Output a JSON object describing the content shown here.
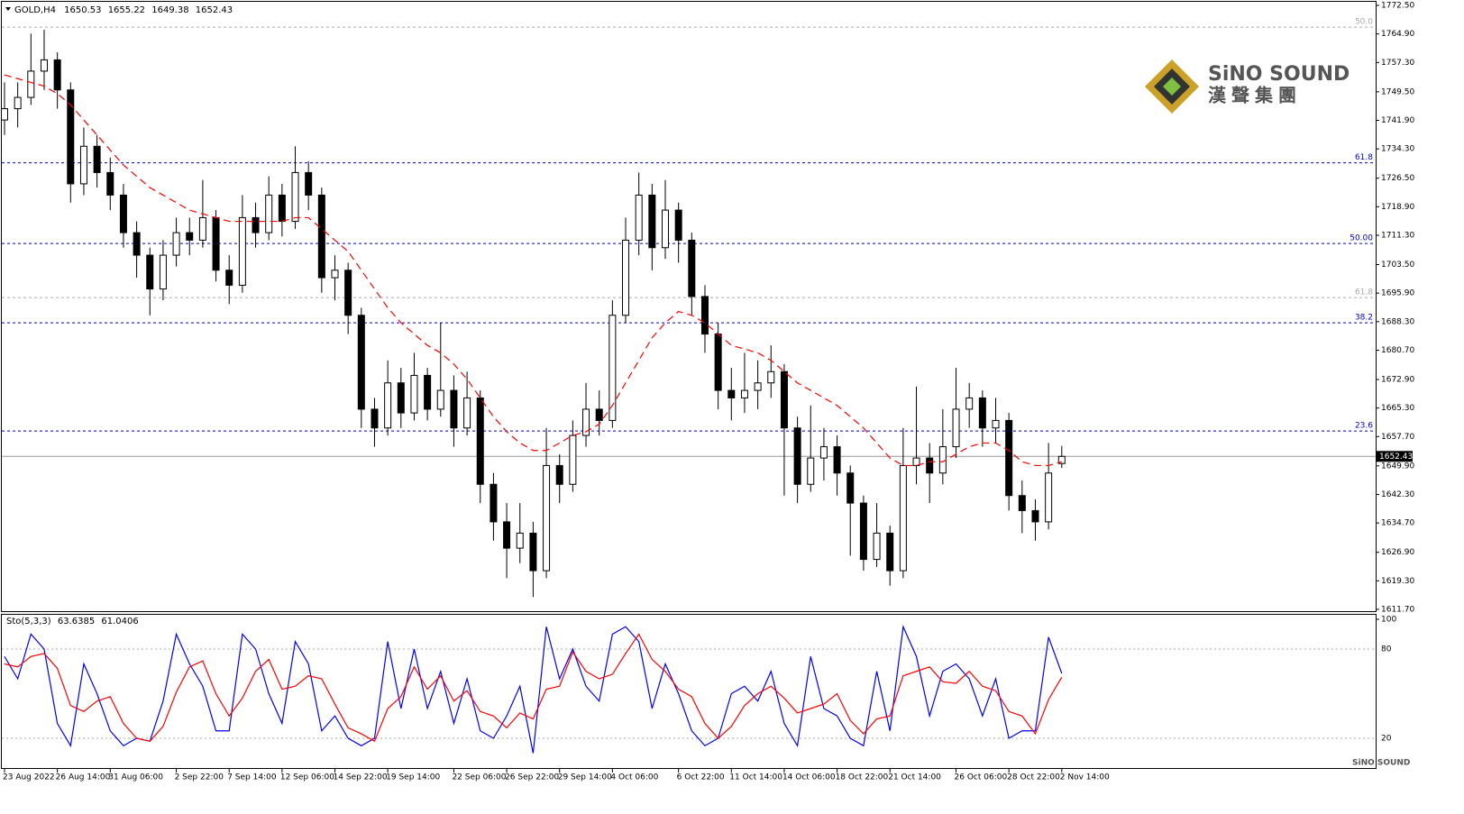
{
  "chart_data": [
    {
      "type": "candlestick",
      "title": "GOLD,H4",
      "categories": [
        "23 Aug 2022",
        null,
        null,
        null,
        "26 Aug 14:00",
        null,
        null,
        null,
        "31 Aug 06:00",
        null,
        null,
        null,
        null,
        "2 Sep 22:00",
        null,
        null,
        null,
        "7 Sep 14:00",
        null,
        null,
        null,
        "12 Sep 06:00",
        null,
        null,
        null,
        "14 Sep 22:00",
        null,
        null,
        null,
        "19 Sep 14:00",
        null,
        null,
        null,
        null,
        "22 Sep 06:00",
        null,
        null,
        null,
        "26 Sep 22:00",
        null,
        null,
        null,
        "29 Sep 14:00",
        null,
        null,
        null,
        "4 Oct 06:00",
        null,
        null,
        null,
        null,
        "6 Oct 22:00",
        null,
        null,
        null,
        "11 Oct 14:00",
        null,
        null,
        null,
        "14 Oct 06:00",
        null,
        null,
        null,
        "18 Oct 22:00",
        null,
        null,
        null,
        "21 Oct 14:00",
        null,
        null,
        null,
        null,
        "26 Oct 06:00",
        null,
        null,
        null,
        "28 Oct 22:00",
        null,
        null,
        null,
        "2 Nov 14:00"
      ],
      "candles": [
        [
          1742,
          1752,
          1738,
          1745
        ],
        [
          1745,
          1752,
          1740,
          1748
        ],
        [
          1748,
          1765,
          1746,
          1755
        ],
        [
          1755,
          1766,
          1750,
          1758
        ],
        [
          1758,
          1760,
          1745,
          1750
        ],
        [
          1750,
          1752,
          1720,
          1725
        ],
        [
          1725,
          1740,
          1722,
          1735
        ],
        [
          1735,
          1738,
          1724,
          1728
        ],
        [
          1728,
          1732,
          1718,
          1722
        ],
        [
          1722,
          1725,
          1708,
          1712
        ],
        [
          1712,
          1715,
          1700,
          1706
        ],
        [
          1706,
          1708,
          1690,
          1697
        ],
        [
          1697,
          1710,
          1694,
          1706
        ],
        [
          1706,
          1716,
          1703,
          1712
        ],
        [
          1712,
          1716,
          1706,
          1710
        ],
        [
          1710,
          1726,
          1708,
          1716
        ],
        [
          1716,
          1718,
          1699,
          1702
        ],
        [
          1702,
          1706,
          1693,
          1698
        ],
        [
          1698,
          1722,
          1696,
          1716
        ],
        [
          1716,
          1720,
          1708,
          1712
        ],
        [
          1712,
          1727,
          1710,
          1722
        ],
        [
          1722,
          1725,
          1711,
          1715
        ],
        [
          1715,
          1735,
          1713,
          1728
        ],
        [
          1728,
          1731,
          1718,
          1722
        ],
        [
          1722,
          1724,
          1696,
          1700
        ],
        [
          1700,
          1706,
          1694,
          1702
        ],
        [
          1702,
          1704,
          1685,
          1690
        ],
        [
          1690,
          1692,
          1660,
          1665
        ],
        [
          1665,
          1668,
          1655,
          1660
        ],
        [
          1660,
          1678,
          1658,
          1672
        ],
        [
          1672,
          1676,
          1660,
          1664
        ],
        [
          1664,
          1680,
          1662,
          1674
        ],
        [
          1674,
          1676,
          1662,
          1665
        ],
        [
          1665,
          1688,
          1663,
          1670
        ],
        [
          1670,
          1674,
          1655,
          1660
        ],
        [
          1660,
          1675,
          1658,
          1668
        ],
        [
          1668,
          1670,
          1640,
          1645
        ],
        [
          1645,
          1648,
          1630,
          1635
        ],
        [
          1635,
          1640,
          1620,
          1628
        ],
        [
          1628,
          1640,
          1624,
          1632
        ],
        [
          1632,
          1635,
          1615,
          1622
        ],
        [
          1622,
          1660,
          1620,
          1650
        ],
        [
          1650,
          1653,
          1640,
          1645
        ],
        [
          1645,
          1662,
          1643,
          1658
        ],
        [
          1658,
          1672,
          1655,
          1665
        ],
        [
          1665,
          1670,
          1658,
          1662
        ],
        [
          1662,
          1694,
          1660,
          1690
        ],
        [
          1690,
          1716,
          1688,
          1710
        ],
        [
          1710,
          1728,
          1706,
          1722
        ],
        [
          1722,
          1725,
          1702,
          1708
        ],
        [
          1708,
          1726,
          1705,
          1718
        ],
        [
          1718,
          1720,
          1704,
          1710
        ],
        [
          1710,
          1712,
          1690,
          1695
        ],
        [
          1695,
          1698,
          1680,
          1685
        ],
        [
          1685,
          1688,
          1665,
          1670
        ],
        [
          1670,
          1676,
          1662,
          1668
        ],
        [
          1668,
          1680,
          1664,
          1670
        ],
        [
          1670,
          1678,
          1665,
          1672
        ],
        [
          1672,
          1682,
          1668,
          1675
        ],
        [
          1675,
          1677,
          1642,
          1660
        ],
        [
          1660,
          1663,
          1640,
          1645
        ],
        [
          1645,
          1666,
          1643,
          1652
        ],
        [
          1652,
          1660,
          1646,
          1655
        ],
        [
          1655,
          1658,
          1642,
          1648
        ],
        [
          1648,
          1650,
          1626,
          1640
        ],
        [
          1640,
          1642,
          1622,
          1625
        ],
        [
          1625,
          1640,
          1623,
          1632
        ],
        [
          1632,
          1634,
          1618,
          1622
        ],
        [
          1622,
          1660,
          1620,
          1650
        ],
        [
          1650,
          1671,
          1645,
          1652
        ],
        [
          1652,
          1656,
          1640,
          1648
        ],
        [
          1648,
          1665,
          1645,
          1655
        ],
        [
          1655,
          1676,
          1652,
          1665
        ],
        [
          1665,
          1672,
          1660,
          1668
        ],
        [
          1668,
          1670,
          1655,
          1660
        ],
        [
          1660,
          1668,
          1656,
          1662
        ],
        [
          1662,
          1664,
          1638,
          1642
        ],
        [
          1642,
          1646,
          1632,
          1638
        ],
        [
          1638,
          1641,
          1630,
          1635
        ],
        [
          1635,
          1656,
          1633,
          1648
        ],
        [
          1650.53,
          1655.22,
          1649.38,
          1652.43
        ]
      ],
      "up_color": "#ffffff",
      "down_color": "#000000",
      "overlay": {
        "color": "#ff0000",
        "values": [
          1754,
          1753,
          1752,
          1751,
          1749,
          1746,
          1742,
          1738,
          1734,
          1730,
          1727,
          1724,
          1722,
          1720,
          1718,
          1717,
          1716,
          1715,
          1715,
          1715,
          1715,
          1715,
          1716,
          1716,
          1713,
          1710,
          1707,
          1702,
          1697,
          1692,
          1688,
          1685,
          1682,
          1680,
          1677,
          1673,
          1668,
          1663,
          1659,
          1656,
          1654,
          1654,
          1656,
          1658,
          1659,
          1661,
          1666,
          1672,
          1678,
          1684,
          1688,
          1691,
          1690,
          1688,
          1685,
          1682,
          1681,
          1680,
          1678,
          1675,
          1672,
          1670,
          1668,
          1666,
          1663,
          1660,
          1656,
          1652,
          1650,
          1650,
          1651,
          1651,
          1653,
          1655,
          1656,
          1656,
          1654,
          1651,
          1650,
          1650,
          1651
        ]
      },
      "levels": [
        {
          "value": 1766.7,
          "label": "50.0",
          "color": "#aaaaaa"
        },
        {
          "value": 1730.6,
          "label": "61.8",
          "color": "#0000cc"
        },
        {
          "value": 1709.1,
          "label": "50.00",
          "color": "#0000cc"
        },
        {
          "value": 1694.7,
          "label": "61.8",
          "color": "#aaaaaa"
        },
        {
          "value": 1688.0,
          "label": "38.2",
          "color": "#0000cc"
        },
        {
          "value": 1659.2,
          "label": "23.6",
          "color": "#0000cc"
        }
      ],
      "ylim": [
        1611.7,
        1772.5
      ],
      "yticks": [
        {
          "value": 1772.5,
          "label": "1772.50"
        },
        {
          "value": 1764.9,
          "label": "1764.90"
        },
        {
          "value": 1757.3,
          "label": "1757.30"
        },
        {
          "value": 1749.5,
          "label": "1749.50"
        },
        {
          "value": 1741.9,
          "label": "1741.90"
        },
        {
          "value": 1734.3,
          "label": "1734.30"
        },
        {
          "value": 1726.5,
          "label": "1726.50"
        },
        {
          "value": 1718.9,
          "label": "1718.90"
        },
        {
          "value": 1711.3,
          "label": "1711.30"
        },
        {
          "value": 1703.5,
          "label": "1703.50"
        },
        {
          "value": 1695.9,
          "label": "1695.90"
        },
        {
          "value": 1688.3,
          "label": "1688.30"
        },
        {
          "value": 1680.7,
          "label": "1680.70"
        },
        {
          "value": 1672.9,
          "label": "1672.90"
        },
        {
          "value": 1665.3,
          "label": "1665.30"
        },
        {
          "value": 1657.7,
          "label": "1657.70"
        },
        {
          "value": 1649.9,
          "label": "1649.90"
        },
        {
          "value": 1642.3,
          "label": "1642.30"
        },
        {
          "value": 1634.7,
          "label": "1634.70"
        },
        {
          "value": 1626.9,
          "label": "1626.90"
        },
        {
          "value": 1619.3,
          "label": "1619.30"
        },
        {
          "value": 1611.7,
          "label": "1611.70"
        }
      ]
    },
    {
      "type": "line",
      "title": "Sto(5,3,3)",
      "series": [
        {
          "color": "#0000ff",
          "values": [
            75,
            60,
            90,
            80,
            30,
            15,
            70,
            50,
            25,
            15,
            20,
            18,
            45,
            90,
            70,
            55,
            25,
            25,
            90,
            80,
            50,
            30,
            85,
            70,
            25,
            35,
            20,
            15,
            20,
            85,
            40,
            80,
            40,
            65,
            30,
            60,
            25,
            20,
            35,
            55,
            10,
            95,
            60,
            80,
            55,
            45,
            90,
            95,
            85,
            40,
            70,
            50,
            25,
            15,
            20,
            50,
            55,
            45,
            65,
            30,
            15,
            75,
            40,
            35,
            20,
            15,
            65,
            25,
            95,
            75,
            35,
            65,
            70,
            60,
            35,
            60,
            20,
            25,
            25,
            88,
            63.6385
          ]
        },
        {
          "color": "#ff0000",
          "values": [
            70,
            68,
            75,
            77,
            67,
            42,
            38,
            45,
            48,
            30,
            20,
            18,
            28,
            51,
            68,
            72,
            50,
            35,
            47,
            65,
            73,
            53,
            55,
            62,
            60,
            43,
            27,
            23,
            18,
            40,
            48,
            68,
            53,
            62,
            45,
            52,
            38,
            35,
            27,
            37,
            33,
            53,
            55,
            78,
            65,
            60,
            63,
            77,
            90,
            73,
            65,
            53,
            48,
            30,
            20,
            28,
            42,
            50,
            55,
            47,
            37,
            40,
            43,
            50,
            32,
            23,
            33,
            35,
            62,
            65,
            68,
            58,
            57,
            65,
            55,
            52,
            38,
            35,
            23,
            46,
            61.0406
          ]
        }
      ],
      "ylim": [
        0,
        100
      ],
      "yticks": [
        100,
        80,
        20
      ],
      "grid": true
    }
  ],
  "watermark": {
    "name": "SiNO SOUND",
    "subtitle": "漢聲集團"
  }
}
